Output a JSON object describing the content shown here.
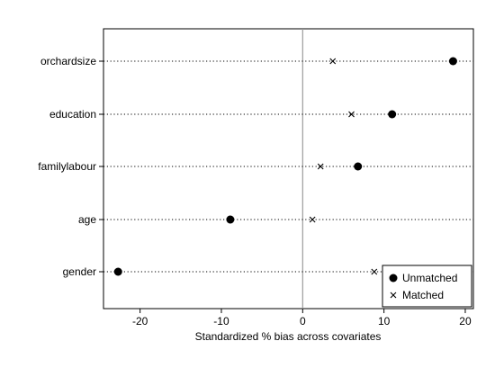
{
  "chart_data": {
    "type": "scatter",
    "title": "",
    "xlabel": "Standardized % bias across covariates",
    "ylabel": "",
    "xlim": [
      -24.5,
      21
    ],
    "xticks": [
      -20,
      -10,
      0,
      10,
      20
    ],
    "reference_line_x": 0,
    "grid": "horizontal dotted lines per covariate",
    "legend_position": "bottom-right",
    "categories": [
      "orchardsize",
      "education",
      "familylabour",
      "age",
      "gender"
    ],
    "series": [
      {
        "name": "Unmatched",
        "marker": "filled-circle",
        "values": [
          18.5,
          11.0,
          6.8,
          -8.9,
          -22.7
        ]
      },
      {
        "name": "Matched",
        "marker": "x",
        "values": [
          3.7,
          6.0,
          2.2,
          1.2,
          8.8
        ]
      }
    ]
  }
}
